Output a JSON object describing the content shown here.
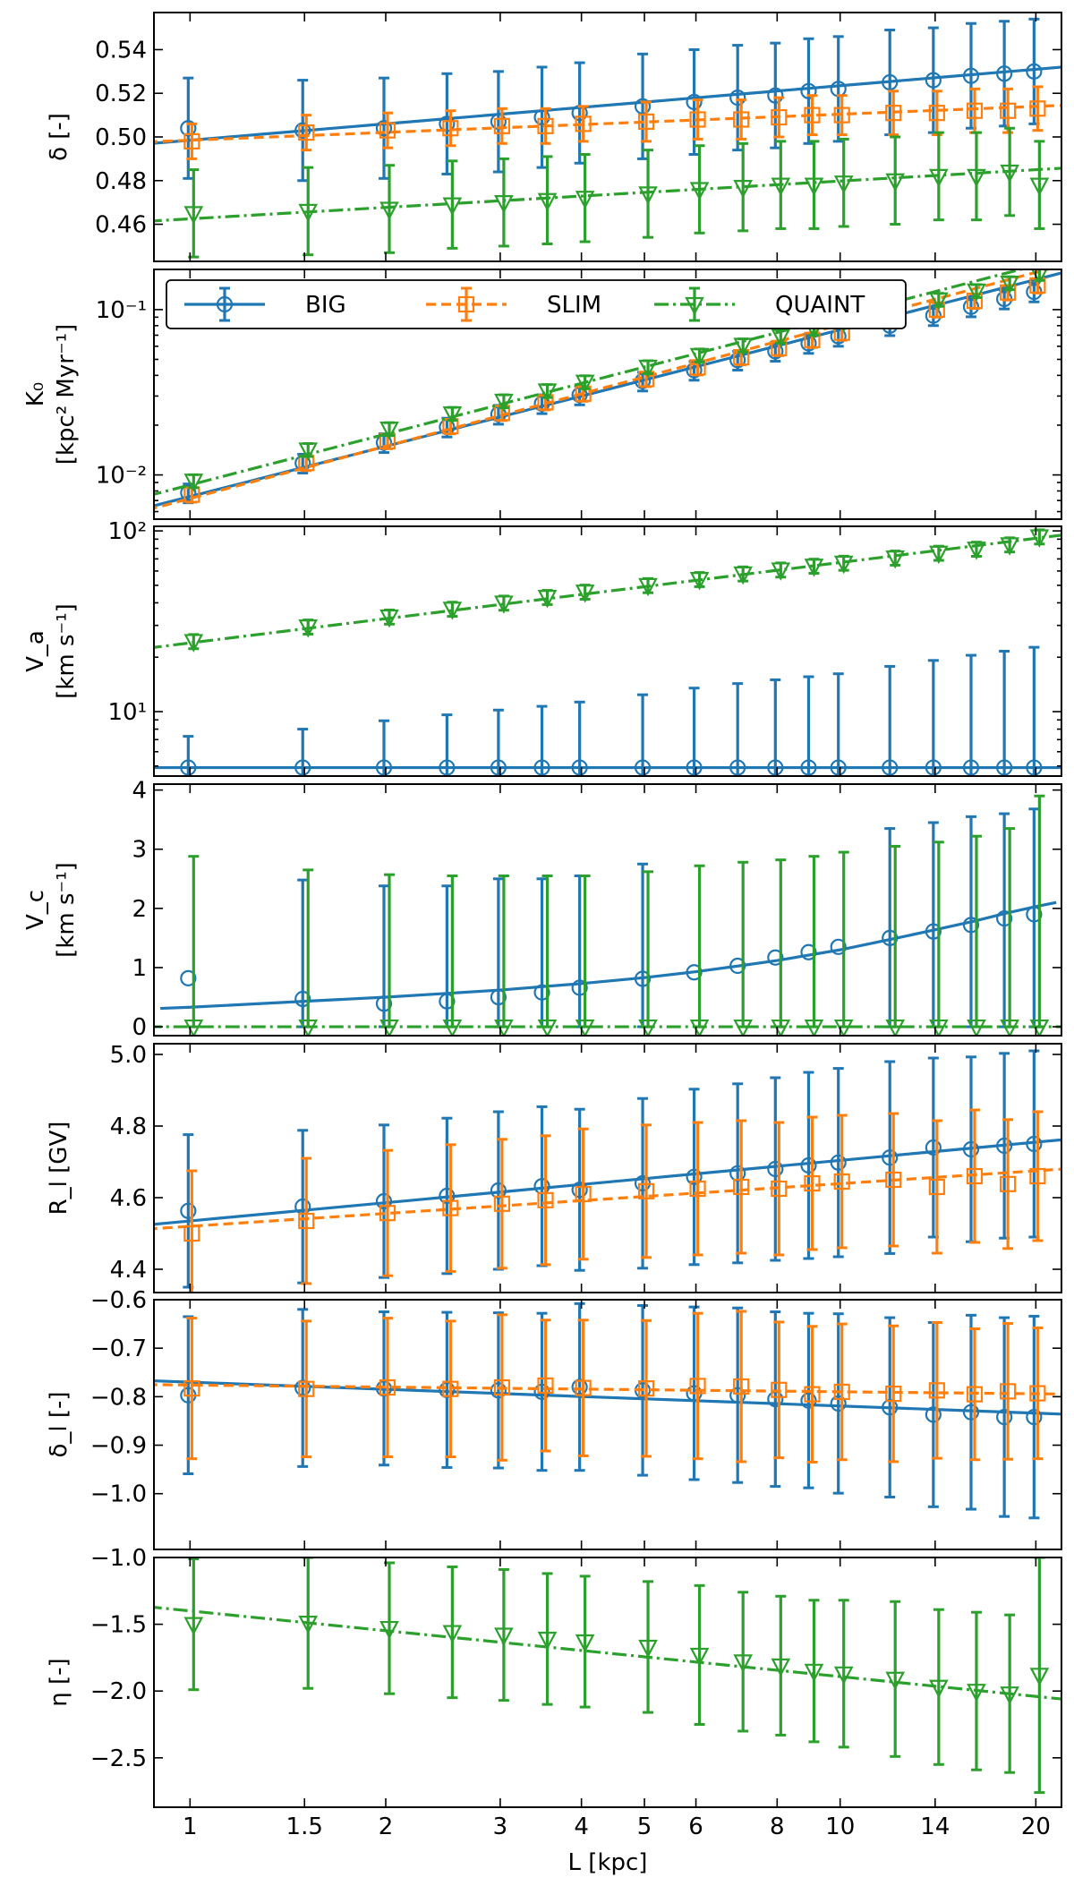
{
  "chart_data": [
    {
      "type": "line",
      "id": "delta",
      "ylabel_lines": [
        "δ [-]"
      ],
      "yscale": "linear",
      "ylim": [
        0.443,
        0.557
      ],
      "yticks": [
        0.46,
        0.48,
        0.5,
        0.52,
        0.54
      ],
      "ytick_labels": [
        "0.46",
        "0.48",
        "0.50",
        "0.52",
        "0.54"
      ],
      "x": [
        1,
        1.5,
        2,
        2.5,
        3,
        3.5,
        4,
        5,
        6,
        7,
        8,
        9,
        10,
        12,
        14,
        16,
        18,
        20
      ],
      "series": [
        {
          "name": "BIG",
          "color": "#1f77b4",
          "marker": "circle",
          "fit": [
            0.4985,
            0.531
          ],
          "values": [
            0.504,
            0.503,
            0.504,
            0.506,
            0.507,
            0.509,
            0.511,
            0.514,
            0.516,
            0.518,
            0.519,
            0.521,
            0.522,
            0.525,
            0.526,
            0.528,
            0.529,
            0.53
          ],
          "err": [
            0.023,
            0.023,
            0.023,
            0.023,
            0.023,
            0.023,
            0.023,
            0.024,
            0.024,
            0.024,
            0.024,
            0.024,
            0.024,
            0.024,
            0.024,
            0.024,
            0.024,
            0.024
          ]
        },
        {
          "name": "SLIM",
          "color": "#ff7f0e",
          "marker": "square",
          "fit": [
            0.4985,
            0.514
          ],
          "values": [
            0.498,
            0.502,
            0.503,
            0.504,
            0.505,
            0.505,
            0.506,
            0.507,
            0.508,
            0.508,
            0.509,
            0.51,
            0.51,
            0.511,
            0.511,
            0.512,
            0.512,
            0.513
          ],
          "err": [
            0.008,
            0.008,
            0.008,
            0.008,
            0.008,
            0.008,
            0.008,
            0.009,
            0.009,
            0.009,
            0.009,
            0.009,
            0.009,
            0.01,
            0.01,
            0.01,
            0.01,
            0.01
          ]
        },
        {
          "name": "QUAINT",
          "color": "#2ca02c",
          "marker": "triangle",
          "fit": [
            0.4625,
            0.485
          ],
          "values": [
            0.465,
            0.466,
            0.467,
            0.469,
            0.47,
            0.471,
            0.472,
            0.474,
            0.476,
            0.477,
            0.478,
            0.478,
            0.479,
            0.48,
            0.482,
            0.482,
            0.484,
            0.478
          ],
          "err": [
            0.02,
            0.02,
            0.02,
            0.02,
            0.02,
            0.02,
            0.02,
            0.02,
            0.02,
            0.02,
            0.02,
            0.02,
            0.02,
            0.02,
            0.02,
            0.02,
            0.02,
            0.02
          ]
        }
      ]
    },
    {
      "type": "line",
      "id": "K0",
      "ylabel_lines": [
        "K₀",
        "[kpc² Myr⁻¹]"
      ],
      "yscale": "log",
      "ylim": [
        0.0054,
        0.175
      ],
      "yticks": [
        0.01,
        0.1
      ],
      "ytick_labels": [
        "10⁻²",
        "10⁻¹"
      ],
      "legend": {
        "placement": "top-left",
        "entries": [
          "BIG",
          "SLIM",
          "QUAINT"
        ]
      },
      "x": [
        1,
        1.5,
        2,
        2.5,
        3,
        3.5,
        4,
        5,
        6,
        7,
        8,
        9,
        10,
        12,
        14,
        16,
        18,
        20
      ],
      "series": [
        {
          "name": "BIG",
          "color": "#1f77b4",
          "marker": "circle",
          "fit": [
            0.0074,
            0.152
          ],
          "values": [
            0.0078,
            0.0118,
            0.0157,
            0.0195,
            0.0233,
            0.027,
            0.0305,
            0.037,
            0.043,
            0.0495,
            0.056,
            0.0625,
            0.069,
            0.08,
            0.092,
            0.104,
            0.116,
            0.128
          ],
          "err_frac": 0.13
        },
        {
          "name": "SLIM",
          "color": "#ff7f0e",
          "marker": "square",
          "fit": [
            0.0072,
            0.168
          ],
          "values": [
            0.0076,
            0.0118,
            0.016,
            0.0197,
            0.0237,
            0.0275,
            0.031,
            0.038,
            0.0447,
            0.0515,
            0.0585,
            0.0655,
            0.0725,
            0.086,
            0.1,
            0.113,
            0.127,
            0.14
          ],
          "err_frac": 0.1
        },
        {
          "name": "QUAINT",
          "color": "#2ca02c",
          "marker": "triangle",
          "fit": [
            0.0087,
            0.185
          ],
          "values": [
            0.0092,
            0.0142,
            0.019,
            0.0235,
            0.028,
            0.0323,
            0.0365,
            0.045,
            0.053,
            0.061,
            0.069,
            0.077,
            0.085,
            0.1,
            0.115,
            0.13,
            0.145,
            0.165
          ],
          "err_frac": 0.09
        }
      ]
    },
    {
      "type": "line",
      "id": "Va",
      "ylabel_lines": [
        "V_a",
        "[km s⁻¹]"
      ],
      "yscale": "log",
      "ylim": [
        4.4,
        106
      ],
      "yticks": [
        10,
        100
      ],
      "ytick_labels": [
        "10¹",
        "10²"
      ],
      "x": [
        1,
        1.5,
        2,
        2.5,
        3,
        3.5,
        4,
        5,
        6,
        7,
        8,
        9,
        10,
        12,
        14,
        16,
        18,
        20
      ],
      "series": [
        {
          "name": "BIG",
          "color": "#1f77b4",
          "marker": "circle",
          "fit": [
            4.9,
            4.9
          ],
          "err_lower_only_floor": true,
          "values": [
            4.9,
            4.9,
            4.9,
            4.9,
            4.9,
            4.9,
            4.9,
            4.9,
            4.9,
            4.9,
            4.9,
            4.9,
            4.9,
            4.9,
            4.9,
            4.9,
            4.9,
            4.9
          ],
          "err_hi": [
            7.3,
            8.0,
            8.9,
            9.6,
            10.2,
            10.7,
            11.3,
            12.4,
            13.5,
            14.3,
            15.0,
            15.6,
            16.2,
            17.8,
            19.2,
            20.5,
            21.6,
            22.7
          ]
        },
        {
          "name": "QUAINT",
          "color": "#2ca02c",
          "marker": "triangle",
          "fit": [
            24.0,
            91.0
          ],
          "values": [
            24.5,
            29.5,
            33.5,
            37.0,
            40.0,
            43.0,
            46.0,
            50.0,
            54.0,
            58.0,
            61.0,
            64.0,
            66.5,
            71.0,
            75.5,
            79.5,
            84.0,
            93.0
          ],
          "err_frac": 0.09
        }
      ]
    },
    {
      "type": "line",
      "id": "Vc",
      "ylabel_lines": [
        "V_c",
        "[km s⁻¹]"
      ],
      "yscale": "linear",
      "ylim": [
        -0.15,
        4.1
      ],
      "yticks": [
        0,
        1,
        2,
        3,
        4
      ],
      "ytick_labels": [
        "0",
        "1",
        "2",
        "3",
        "4"
      ],
      "x": [
        1,
        1.5,
        2,
        2.5,
        3,
        3.5,
        4,
        5,
        6,
        7,
        8,
        9,
        10,
        12,
        14,
        16,
        18,
        20
      ],
      "series": [
        {
          "name": "BIG",
          "color": "#1f77b4",
          "marker": "circle",
          "fit_curve": [
            [
              0.9,
              0.31
            ],
            [
              1,
              0.33
            ],
            [
              1.5,
              0.43
            ],
            [
              2,
              0.5
            ],
            [
              3,
              0.62
            ],
            [
              4,
              0.73
            ],
            [
              5,
              0.83
            ],
            [
              6,
              0.93
            ],
            [
              7,
              1.03
            ],
            [
              8,
              1.12
            ],
            [
              10,
              1.3
            ],
            [
              12,
              1.48
            ],
            [
              14,
              1.64
            ],
            [
              16,
              1.78
            ],
            [
              18,
              1.92
            ],
            [
              20,
              2.03
            ],
            [
              21.5,
              2.1
            ]
          ],
          "values": [
            0.82,
            0.47,
            0.39,
            0.43,
            0.5,
            0.58,
            0.66,
            0.81,
            0.92,
            1.03,
            1.17,
            1.26,
            1.35,
            1.5,
            1.61,
            1.72,
            1.83,
            1.9
          ],
          "err_lo": [
            null,
            0.0,
            0.0,
            0.0,
            0.0,
            0.0,
            0.0,
            0.0,
            null,
            null,
            null,
            null,
            null,
            0.0,
            0.0,
            0.0,
            0.0,
            0.0
          ],
          "err_hi": [
            null,
            2.48,
            2.38,
            2.38,
            2.5,
            2.5,
            2.55,
            2.75,
            null,
            null,
            null,
            null,
            null,
            3.35,
            3.45,
            3.55,
            3.6,
            3.68
          ]
        },
        {
          "name": "QUAINT",
          "color": "#2ca02c",
          "marker": "triangle",
          "fit": [
            0.0,
            0.0
          ],
          "values": [
            0,
            0,
            0,
            0,
            0,
            0,
            0,
            0,
            0,
            0,
            0,
            0,
            0,
            0,
            0,
            0,
            0,
            0
          ],
          "err_hi": [
            2.88,
            2.65,
            2.57,
            2.55,
            2.55,
            2.55,
            2.55,
            2.62,
            2.72,
            2.78,
            2.82,
            2.88,
            2.95,
            3.05,
            3.12,
            3.22,
            3.35,
            3.9
          ]
        }
      ]
    },
    {
      "type": "line",
      "id": "Rl",
      "ylabel_lines": [
        "R_l [GV]"
      ],
      "yscale": "linear",
      "ylim": [
        4.335,
        5.03
      ],
      "yticks": [
        4.4,
        4.6,
        4.8,
        5.0
      ],
      "ytick_labels": [
        "4.4",
        "4.6",
        "4.8",
        "5.0"
      ],
      "x": [
        1,
        1.5,
        2,
        2.5,
        3,
        3.5,
        4,
        5,
        6,
        7,
        8,
        9,
        10,
        12,
        14,
        16,
        18,
        20
      ],
      "series": [
        {
          "name": "BIG",
          "color": "#1f77b4",
          "marker": "circle",
          "fit": [
            4.535,
            4.755
          ],
          "values": [
            4.563,
            4.575,
            4.59,
            4.605,
            4.62,
            4.632,
            4.622,
            4.64,
            4.658,
            4.668,
            4.68,
            4.69,
            4.698,
            4.712,
            4.74,
            4.735,
            4.745,
            4.75
          ],
          "err": [
            0.213,
            0.213,
            0.213,
            0.217,
            0.22,
            0.222,
            0.225,
            0.237,
            0.245,
            0.25,
            0.255,
            0.26,
            0.263,
            0.268,
            0.25,
            0.258,
            0.258,
            0.26
          ]
        },
        {
          "name": "SLIM",
          "color": "#ff7f0e",
          "marker": "square",
          "fit": [
            4.52,
            4.675
          ],
          "values": [
            4.5,
            4.535,
            4.557,
            4.571,
            4.583,
            4.593,
            4.61,
            4.618,
            4.625,
            4.63,
            4.625,
            4.64,
            4.645,
            4.65,
            4.63,
            4.66,
            4.638,
            4.66
          ],
          "err": [
            0.175,
            0.175,
            0.175,
            0.177,
            0.18,
            0.18,
            0.182,
            0.185,
            0.185,
            0.185,
            0.185,
            0.185,
            0.185,
            0.185,
            0.185,
            0.185,
            0.18,
            0.18
          ]
        }
      ]
    },
    {
      "type": "line",
      "id": "deltal",
      "ylabel_lines": [
        "δ_l [-]"
      ],
      "yscale": "linear",
      "ylim": [
        -1.115,
        -0.6
      ],
      "yticks": [
        -1.0,
        -0.9,
        -0.8,
        -0.7,
        -0.6
      ],
      "ytick_labels": [
        "−1.0",
        "−0.9",
        "−0.8",
        "−0.7",
        "−0.6"
      ],
      "x": [
        1,
        1.5,
        2,
        2.5,
        3,
        3.5,
        4,
        5,
        6,
        7,
        8,
        9,
        10,
        12,
        14,
        16,
        18,
        20
      ],
      "series": [
        {
          "name": "BIG",
          "color": "#1f77b4",
          "marker": "circle",
          "fit": [
            -0.77,
            -0.834
          ],
          "values": [
            -0.797,
            -0.782,
            -0.783,
            -0.786,
            -0.787,
            -0.79,
            -0.78,
            -0.787,
            -0.793,
            -0.797,
            -0.805,
            -0.808,
            -0.814,
            -0.822,
            -0.837,
            -0.832,
            -0.842,
            -0.842
          ],
          "err": [
            0.162,
            0.162,
            0.158,
            0.16,
            0.16,
            0.162,
            0.172,
            0.175,
            0.178,
            0.18,
            0.18,
            0.18,
            0.185,
            0.185,
            0.19,
            0.2,
            0.205,
            0.208
          ]
        },
        {
          "name": "SLIM",
          "color": "#ff7f0e",
          "marker": "square",
          "fit": [
            -0.776,
            -0.794
          ],
          "values": [
            -0.783,
            -0.784,
            -0.781,
            -0.784,
            -0.781,
            -0.777,
            -0.782,
            -0.783,
            -0.778,
            -0.779,
            -0.786,
            -0.795,
            -0.79,
            -0.794,
            -0.787,
            -0.795,
            -0.789,
            -0.793
          ],
          "err": [
            0.145,
            0.14,
            0.143,
            0.14,
            0.15,
            0.135,
            0.14,
            0.14,
            0.15,
            0.155,
            0.14,
            0.14,
            0.14,
            0.14,
            0.14,
            0.135,
            0.14,
            0.135
          ]
        }
      ]
    },
    {
      "type": "line",
      "id": "eta",
      "ylabel_lines": [
        "η [-]"
      ],
      "yscale": "linear",
      "ylim": [
        -2.87,
        -1.0
      ],
      "yticks": [
        -2.5,
        -2.0,
        -1.5,
        -1.0
      ],
      "ytick_labels": [
        "−2.5",
        "−2.0",
        "−1.5",
        "−1.0"
      ],
      "x": [
        1,
        1.5,
        2,
        2.5,
        3,
        3.5,
        4,
        5,
        6,
        7,
        8,
        9,
        10,
        12,
        14,
        16,
        18,
        20
      ],
      "series": [
        {
          "name": "QUAINT",
          "color": "#2ca02c",
          "marker": "triangle",
          "fit": [
            -1.4,
            -2.04
          ],
          "values": [
            -1.5,
            -1.49,
            -1.53,
            -1.56,
            -1.58,
            -1.61,
            -1.63,
            -1.67,
            -1.73,
            -1.78,
            -1.81,
            -1.85,
            -1.87,
            -1.91,
            -1.97,
            -2.0,
            -2.02,
            -1.88
          ],
          "err": [
            0.49,
            0.49,
            0.49,
            0.49,
            0.49,
            0.49,
            0.49,
            0.49,
            0.52,
            0.52,
            0.52,
            0.53,
            0.55,
            0.58,
            0.58,
            0.59,
            0.59,
            0.88
          ]
        }
      ]
    }
  ],
  "x_axis": {
    "label": "L [kpc]",
    "scale": "log",
    "xlim": [
      0.88,
      21.9
    ],
    "ticks": [
      1,
      1.5,
      2,
      3,
      4,
      5,
      6,
      8,
      10,
      14,
      20
    ],
    "tick_labels": [
      "1",
      "1.5",
      "2",
      "3",
      "4",
      "5",
      "6",
      "8",
      "10",
      "14",
      "20"
    ]
  }
}
